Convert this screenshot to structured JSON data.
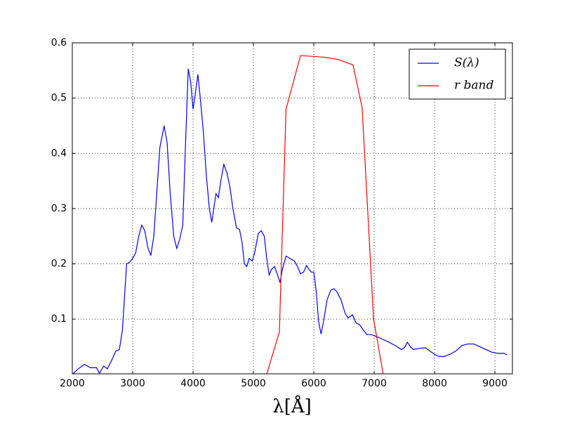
{
  "chart_data": {
    "type": "line",
    "xlabel": "λ[Å]",
    "xlim": [
      2000,
      9290
    ],
    "ylim": [
      0.001,
      0.6
    ],
    "xticks": [
      2000,
      3000,
      4000,
      5000,
      6000,
      7000,
      8000,
      9000
    ],
    "yticks": [
      0.1,
      0.2,
      0.3,
      0.4,
      0.5,
      0.6
    ],
    "grid": true,
    "legend": "upper right",
    "series": [
      {
        "name": "S(λ)",
        "color": "#0000ff",
        "x": [
          2000,
          2100,
          2200,
          2300,
          2400,
          2450,
          2520,
          2580,
          2650,
          2720,
          2780,
          2830,
          2870,
          2900,
          2950,
          3000,
          3050,
          3100,
          3150,
          3200,
          3250,
          3300,
          3350,
          3400,
          3450,
          3520,
          3570,
          3620,
          3680,
          3730,
          3780,
          3830,
          3870,
          3920,
          3960,
          4000,
          4040,
          4080,
          4120,
          4170,
          4220,
          4270,
          4310,
          4350,
          4380,
          4420,
          4460,
          4510,
          4560,
          4610,
          4660,
          4720,
          4770,
          4810,
          4850,
          4890,
          4930,
          4980,
          5020,
          5080,
          5130,
          5180,
          5220,
          5260,
          5300,
          5350,
          5400,
          5440,
          5480,
          5540,
          5600,
          5680,
          5730,
          5780,
          5830,
          5880,
          5920,
          5960,
          6000,
          6040,
          6080,
          6120,
          6160,
          6220,
          6280,
          6330,
          6380,
          6450,
          6520,
          6570,
          6640,
          6700,
          6760,
          6820,
          6880,
          6950,
          7050,
          7150,
          7250,
          7350,
          7450,
          7500,
          7550,
          7600,
          7650,
          7750,
          7850,
          7950,
          8050,
          8150,
          8250,
          8350,
          8450,
          8550,
          8650,
          8750,
          8850,
          8950,
          9050,
          9150,
          9200
        ],
        "values": [
          0.0,
          0.01,
          0.018,
          0.012,
          0.012,
          0.002,
          0.015,
          0.01,
          0.025,
          0.042,
          0.045,
          0.08,
          0.15,
          0.2,
          0.203,
          0.21,
          0.22,
          0.25,
          0.27,
          0.26,
          0.23,
          0.215,
          0.25,
          0.33,
          0.41,
          0.45,
          0.42,
          0.33,
          0.25,
          0.228,
          0.245,
          0.27,
          0.4,
          0.553,
          0.53,
          0.48,
          0.51,
          0.543,
          0.5,
          0.44,
          0.36,
          0.3,
          0.275,
          0.305,
          0.327,
          0.32,
          0.35,
          0.38,
          0.365,
          0.34,
          0.3,
          0.265,
          0.262,
          0.24,
          0.2,
          0.195,
          0.21,
          0.205,
          0.22,
          0.255,
          0.26,
          0.25,
          0.21,
          0.18,
          0.19,
          0.195,
          0.18,
          0.166,
          0.19,
          0.214,
          0.21,
          0.205,
          0.195,
          0.182,
          0.185,
          0.197,
          0.19,
          0.185,
          0.185,
          0.15,
          0.095,
          0.073,
          0.095,
          0.135,
          0.152,
          0.155,
          0.15,
          0.135,
          0.11,
          0.102,
          0.108,
          0.093,
          0.09,
          0.08,
          0.072,
          0.072,
          0.068,
          0.063,
          0.058,
          0.052,
          0.045,
          0.048,
          0.058,
          0.05,
          0.045,
          0.047,
          0.048,
          0.04,
          0.033,
          0.032,
          0.036,
          0.042,
          0.052,
          0.055,
          0.055,
          0.05,
          0.045,
          0.04,
          0.038,
          0.038,
          0.035
        ]
      },
      {
        "name": "r band",
        "color": "#ff0000",
        "x": [
          5220,
          5430,
          5540,
          5780,
          6180,
          6400,
          6650,
          6800,
          6990,
          7150
        ],
        "values": [
          0.0,
          0.077,
          0.48,
          0.577,
          0.574,
          0.57,
          0.56,
          0.483,
          0.1,
          0.0
        ]
      }
    ]
  }
}
